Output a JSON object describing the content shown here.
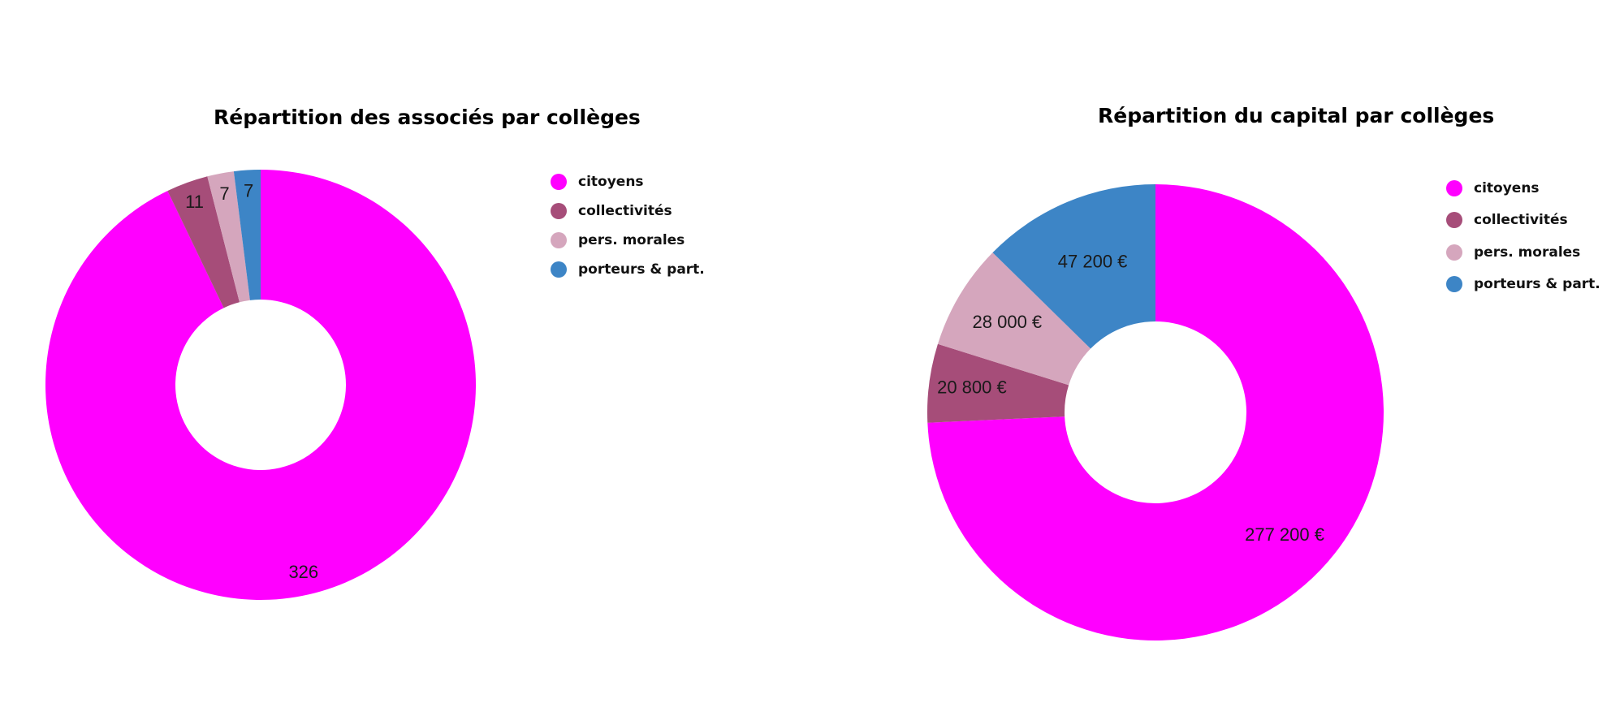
{
  "chart_data": [
    {
      "type": "pie",
      "title": "Répartition des associés par collèges",
      "categories": [
        "citoyens",
        "collectivités",
        "pers. morales",
        "porteurs & part."
      ],
      "values": [
        326,
        11,
        7,
        7
      ],
      "labels": [
        "326",
        "11",
        "7",
        "7"
      ],
      "colors": [
        "#ff00ff",
        "#a64d79",
        "#d5a6bd",
        "#3d85c6"
      ],
      "donut": true,
      "legend": "right"
    },
    {
      "type": "pie",
      "title": "Répartition du capital par collèges",
      "categories": [
        "citoyens",
        "collectivités",
        "pers. morales",
        "porteurs & part."
      ],
      "values": [
        277200,
        20800,
        28000,
        47200
      ],
      "labels": [
        "277 200 €",
        "20 800 €",
        "28 000 €",
        "47 200 €"
      ],
      "colors": [
        "#ff00ff",
        "#a64d79",
        "#d5a6bd",
        "#3d85c6"
      ],
      "donut": true,
      "legend": "right"
    }
  ]
}
